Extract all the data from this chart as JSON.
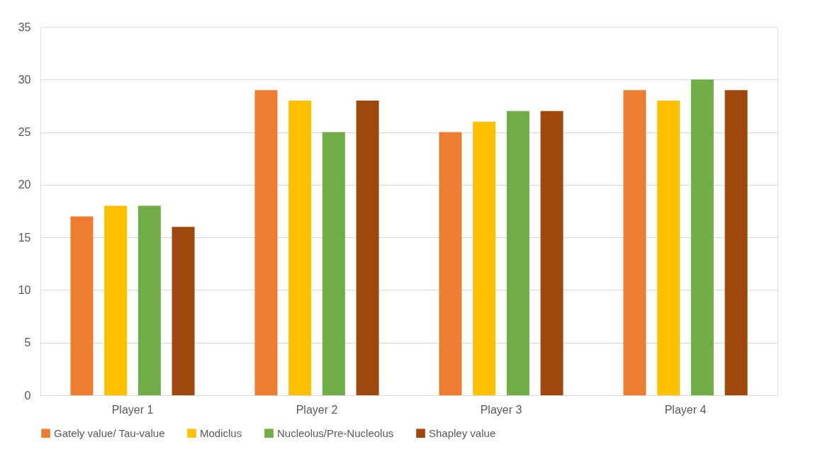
{
  "chart_data": {
    "type": "bar",
    "categories": [
      "Player 1",
      "Player 2",
      "Player 3",
      "Player 4"
    ],
    "series": [
      {
        "name": "Gately value/ Tau-value",
        "color": "#ed7d31",
        "values": [
          17,
          29,
          25,
          29
        ]
      },
      {
        "name": "Modiclus",
        "color": "#ffc000",
        "values": [
          18,
          28,
          26,
          28
        ]
      },
      {
        "name": "Nucleolus/Pre-Nucleolus",
        "color": "#70ad47",
        "values": [
          18,
          25,
          27,
          30
        ]
      },
      {
        "name": "Shapley value",
        "color": "#9e480e",
        "values": [
          16,
          28,
          27,
          29
        ]
      }
    ],
    "ylim": [
      0,
      35
    ],
    "yticks": [
      0,
      5,
      10,
      15,
      20,
      25,
      30,
      35
    ],
    "grid": "y",
    "legend": "bottom"
  }
}
